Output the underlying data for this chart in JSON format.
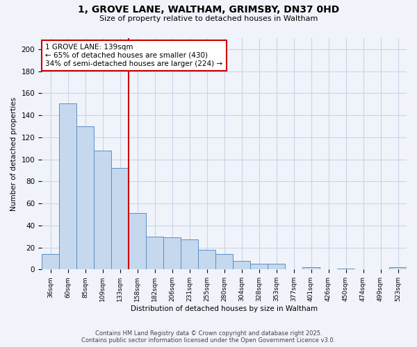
{
  "title1": "1, GROVE LANE, WALTHAM, GRIMSBY, DN37 0HD",
  "title2": "Size of property relative to detached houses in Waltham",
  "xlabel": "Distribution of detached houses by size in Waltham",
  "ylabel": "Number of detached properties",
  "categories": [
    "36sqm",
    "60sqm",
    "85sqm",
    "109sqm",
    "133sqm",
    "158sqm",
    "182sqm",
    "206sqm",
    "231sqm",
    "255sqm",
    "280sqm",
    "304sqm",
    "328sqm",
    "353sqm",
    "377sqm",
    "401sqm",
    "426sqm",
    "450sqm",
    "474sqm",
    "499sqm",
    "523sqm"
  ],
  "values": [
    14,
    151,
    130,
    108,
    92,
    51,
    30,
    29,
    27,
    18,
    14,
    8,
    5,
    5,
    0,
    2,
    0,
    1,
    0,
    0,
    2
  ],
  "bar_color": "#c5d8ee",
  "bar_edge_color": "#5b8ec4",
  "background_color": "#f0f4fa",
  "grid_color": "#c8d4e8",
  "vline_x": 4.5,
  "vline_color": "#cc0000",
  "annotation_text": "1 GROVE LANE: 139sqm\n← 65% of detached houses are smaller (430)\n34% of semi-detached houses are larger (224) →",
  "annotation_box_color": "#ffffff",
  "annotation_box_edge": "#cc0000",
  "ylim": [
    0,
    210
  ],
  "yticks": [
    0,
    20,
    40,
    60,
    80,
    100,
    120,
    140,
    160,
    180,
    200
  ],
  "footer1": "Contains HM Land Registry data © Crown copyright and database right 2025.",
  "footer2": "Contains public sector information licensed under the Open Government Licence v3.0."
}
